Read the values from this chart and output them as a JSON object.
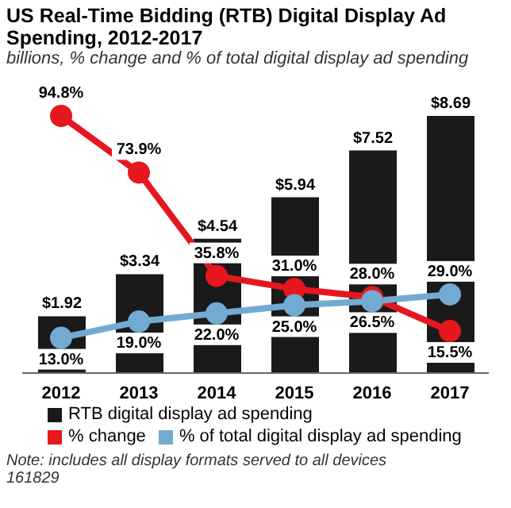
{
  "chart_data": {
    "type": "bar",
    "title": "US Real-Time Bidding (RTB) Digital Display Ad Spending, 2012-2017",
    "subtitle": "billions, % change and % of total digital display ad spending",
    "categories": [
      "2012",
      "2013",
      "2014",
      "2015",
      "2016",
      "2017"
    ],
    "series": [
      {
        "name": "RTB digital display ad spending",
        "color": "#1a1a1a",
        "values": [
          1.92,
          3.34,
          4.54,
          5.94,
          7.52,
          8.69
        ],
        "value_labels": [
          "$1.92",
          "$3.34",
          "$4.54",
          "$5.94",
          "$7.52",
          "$8.69"
        ]
      },
      {
        "name": "% change",
        "type": "line",
        "axis": "y2",
        "color": "#e5171f",
        "values": [
          94.8,
          73.9,
          35.8,
          31.0,
          28.0,
          15.5
        ],
        "value_labels": [
          "94.8%",
          "73.9%",
          "35.8%",
          "31.0%",
          "28.0%",
          "15.5%"
        ]
      },
      {
        "name": "% of total digital display ad spending",
        "type": "line",
        "axis": "y2",
        "color": "#72aad2",
        "values": [
          13.0,
          19.0,
          22.0,
          25.0,
          26.5,
          29.0
        ],
        "value_labels": [
          "13.0%",
          "19.0%",
          "22.0%",
          "25.0%",
          "26.5%",
          "29.0%"
        ]
      }
    ],
    "marker": "circle",
    "legend": "bottom",
    "tick_labels": "x",
    "grid": false,
    "annotations": [
      "Note: includes all display formats served to all devices",
      "161829"
    ]
  }
}
